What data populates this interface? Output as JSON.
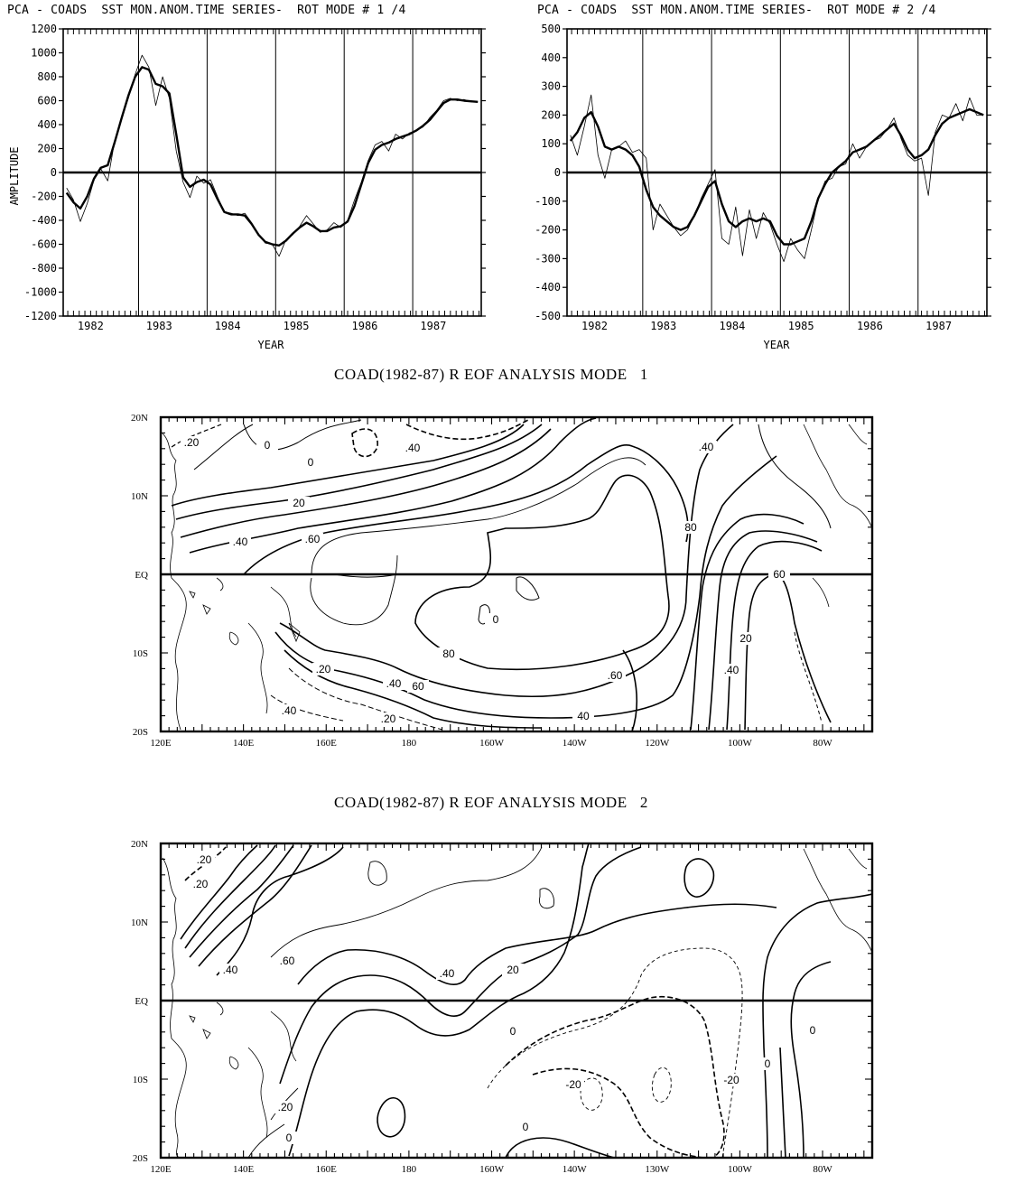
{
  "chart_data": [
    {
      "type": "line",
      "title": "PCA - COADS  SST MON.ANOM.TIME SERIES-  ROT MODE # 1 /4",
      "xlabel": "YEAR",
      "ylabel": "AMPLITUDE",
      "xlim": [
        1981.6,
        1987.7
      ],
      "ylim": [
        -1200,
        1200
      ],
      "yticks": [
        1200,
        1000,
        800,
        600,
        400,
        200,
        0,
        -200,
        -400,
        -600,
        -800,
        -1000,
        -1200
      ],
      "xtick_labels": [
        "1982",
        "1983",
        "1984",
        "1985",
        "1986",
        "1987"
      ],
      "year_separators": [
        1982.7,
        1983.7,
        1984.7,
        1985.7,
        1986.7
      ],
      "series": [
        {
          "style": "monthly",
          "x": [
            1981.65,
            1981.75,
            1981.85,
            1981.95,
            1982.05,
            1982.15,
            1982.25,
            1982.35,
            1982.45,
            1982.55,
            1982.65,
            1982.75,
            1982.85,
            1982.95,
            1983.05,
            1983.15,
            1983.25,
            1983.35,
            1983.45,
            1983.55,
            1983.65,
            1983.75,
            1983.85,
            1983.95,
            1984.05,
            1984.15,
            1984.25,
            1984.35,
            1984.45,
            1984.55,
            1984.65,
            1984.75,
            1984.85,
            1984.95,
            1985.05,
            1985.15,
            1985.25,
            1985.35,
            1985.45,
            1985.55,
            1985.65,
            1985.75,
            1985.85,
            1985.95,
            1986.05,
            1986.15,
            1986.25,
            1986.35,
            1986.45,
            1986.55,
            1986.65,
            1986.75,
            1986.85,
            1986.95,
            1987.05,
            1987.15,
            1987.25,
            1987.35,
            1987.45,
            1987.55,
            1987.65
          ],
          "y": [
            -130,
            -230,
            -410,
            -260,
            -60,
            30,
            -70,
            260,
            440,
            620,
            820,
            980,
            880,
            560,
            800,
            620,
            180,
            -80,
            -210,
            -30,
            -90,
            -60,
            -200,
            -330,
            -340,
            -360,
            -340,
            -420,
            -520,
            -590,
            -600,
            -700,
            -560,
            -520,
            -450,
            -360,
            -430,
            -500,
            -480,
            -420,
            -460,
            -400,
            -230,
            -80,
            100,
            230,
            260,
            180,
            320,
            280,
            330,
            350,
            380,
            460,
            520,
            600,
            620,
            600,
            610,
            590,
            590
          ]
        },
        {
          "style": "smoothed",
          "x": [
            1981.65,
            1981.75,
            1981.85,
            1981.95,
            1982.05,
            1982.15,
            1982.25,
            1982.35,
            1982.45,
            1982.55,
            1982.65,
            1982.75,
            1982.85,
            1982.95,
            1983.05,
            1983.15,
            1983.25,
            1983.35,
            1983.45,
            1983.55,
            1983.65,
            1983.75,
            1983.85,
            1983.95,
            1984.05,
            1984.15,
            1984.25,
            1984.35,
            1984.45,
            1984.55,
            1984.65,
            1984.75,
            1984.85,
            1984.95,
            1985.05,
            1985.15,
            1985.25,
            1985.35,
            1985.45,
            1985.55,
            1985.65,
            1985.75,
            1985.85,
            1985.95,
            1986.05,
            1986.15,
            1986.25,
            1986.35,
            1986.45,
            1986.55,
            1986.65,
            1986.75,
            1986.85,
            1986.95,
            1987.05,
            1987.15,
            1987.25,
            1987.35,
            1987.45,
            1987.55,
            1987.65
          ],
          "y": [
            -170,
            -250,
            -300,
            -200,
            -50,
            40,
            60,
            250,
            450,
            640,
            800,
            880,
            860,
            740,
            720,
            660,
            320,
            -40,
            -120,
            -80,
            -60,
            -100,
            -220,
            -330,
            -350,
            -350,
            -360,
            -430,
            -520,
            -580,
            -600,
            -610,
            -570,
            -510,
            -460,
            -420,
            -450,
            -490,
            -490,
            -460,
            -450,
            -410,
            -280,
            -100,
            80,
            190,
            230,
            250,
            280,
            300,
            320,
            350,
            390,
            440,
            510,
            580,
            610,
            610,
            600,
            595,
            590
          ]
        }
      ]
    },
    {
      "type": "line",
      "title": "PCA - COADS  SST MON.ANOM.TIME SERIES-  ROT MODE # 2 /4",
      "xlabel": "YEAR",
      "ylim": [
        -500,
        500
      ],
      "xlim": [
        1981.6,
        1987.7
      ],
      "yticks": [
        500,
        400,
        300,
        200,
        100,
        0,
        -100,
        -200,
        -300,
        -400,
        -500
      ],
      "xtick_labels": [
        "1982",
        "1983",
        "1984",
        "1985",
        "1986",
        "1987"
      ],
      "year_separators": [
        1982.7,
        1983.7,
        1984.7,
        1985.7,
        1986.7
      ],
      "series": [
        {
          "style": "monthly",
          "x": [
            1981.65,
            1981.75,
            1981.85,
            1981.95,
            1982.05,
            1982.15,
            1982.25,
            1982.35,
            1982.45,
            1982.55,
            1982.65,
            1982.75,
            1982.85,
            1982.95,
            1983.05,
            1983.15,
            1983.25,
            1983.35,
            1983.45,
            1983.55,
            1983.65,
            1983.75,
            1983.85,
            1983.95,
            1984.05,
            1984.15,
            1984.25,
            1984.35,
            1984.45,
            1984.55,
            1984.65,
            1984.75,
            1984.85,
            1984.95,
            1985.05,
            1985.15,
            1985.25,
            1985.35,
            1985.45,
            1985.55,
            1985.65,
            1985.75,
            1985.85,
            1985.95,
            1986.05,
            1986.15,
            1986.25,
            1986.35,
            1986.45,
            1986.55,
            1986.65,
            1986.75,
            1986.85,
            1986.95,
            1987.05,
            1987.15,
            1987.25,
            1987.35,
            1987.45,
            1987.55,
            1987.65
          ],
          "y": [
            130,
            60,
            160,
            270,
            60,
            -20,
            80,
            90,
            110,
            70,
            80,
            50,
            -200,
            -110,
            -150,
            -190,
            -220,
            -200,
            -150,
            -90,
            -40,
            10,
            -230,
            -250,
            -120,
            -290,
            -130,
            -230,
            -140,
            -180,
            -250,
            -310,
            -230,
            -270,
            -300,
            -200,
            -90,
            -30,
            -20,
            20,
            30,
            100,
            50,
            90,
            110,
            120,
            150,
            190,
            120,
            60,
            40,
            50,
            -80,
            140,
            200,
            190,
            240,
            180,
            260,
            200,
            200
          ]
        },
        {
          "style": "smoothed",
          "x": [
            1981.65,
            1981.75,
            1981.85,
            1981.95,
            1982.05,
            1982.15,
            1982.25,
            1982.35,
            1982.45,
            1982.55,
            1982.65,
            1982.75,
            1982.85,
            1982.95,
            1983.05,
            1983.15,
            1983.25,
            1983.35,
            1983.45,
            1983.55,
            1983.65,
            1983.75,
            1983.85,
            1983.95,
            1984.05,
            1984.15,
            1984.25,
            1984.35,
            1984.45,
            1984.55,
            1984.65,
            1984.75,
            1984.85,
            1984.95,
            1985.05,
            1985.15,
            1985.25,
            1985.35,
            1985.45,
            1985.55,
            1985.65,
            1985.75,
            1985.85,
            1985.95,
            1986.05,
            1986.15,
            1986.25,
            1986.35,
            1986.45,
            1986.55,
            1986.65,
            1986.75,
            1986.85,
            1986.95,
            1987.05,
            1987.15,
            1987.25,
            1987.35,
            1987.45,
            1987.55,
            1987.65
          ],
          "y": [
            110,
            140,
            190,
            210,
            160,
            90,
            80,
            90,
            80,
            60,
            20,
            -60,
            -120,
            -150,
            -170,
            -190,
            -200,
            -190,
            -150,
            -100,
            -50,
            -30,
            -110,
            -170,
            -190,
            -170,
            -160,
            -170,
            -160,
            -170,
            -220,
            -250,
            -250,
            -240,
            -230,
            -170,
            -90,
            -40,
            0,
            20,
            40,
            70,
            80,
            90,
            110,
            130,
            150,
            170,
            130,
            80,
            50,
            60,
            80,
            130,
            170,
            190,
            200,
            210,
            220,
            210,
            200
          ]
        }
      ]
    },
    {
      "type": "contour-map",
      "title": "COAD(1982-87) R EOF ANALYSIS MODE   1",
      "lon_labels": [
        "120E",
        "140E",
        "160E",
        "180",
        "160W",
        "140W",
        "120W",
        "100W",
        "80W"
      ],
      "lat_labels": [
        "20N",
        "10N",
        "EQ",
        "10S",
        "20S"
      ],
      "contour_labels": [
        ".20",
        "0",
        "0",
        ".40",
        ".40",
        "20",
        ".60",
        ".40",
        "60",
        "0",
        "80",
        "60",
        "80",
        ".20",
        "20",
        ".40",
        ".60",
        ".40",
        "40",
        ".20",
        ".40"
      ]
    },
    {
      "type": "contour-map",
      "title": "COAD(1982-87) R EOF ANALYSIS MODE   2",
      "lon_labels": [
        "120E",
        "140E",
        "160E",
        "180",
        "160W",
        "140W",
        "130W",
        "100W",
        "80W"
      ],
      "lat_labels": [
        "20N",
        "10N",
        "EQ",
        "10S",
        "20S"
      ],
      "contour_labels": [
        ".20",
        ".20",
        ".40",
        ".60",
        ".40",
        "20",
        "0",
        "-20",
        "-20",
        "0",
        "0",
        ".20",
        "0",
        "0"
      ]
    }
  ]
}
